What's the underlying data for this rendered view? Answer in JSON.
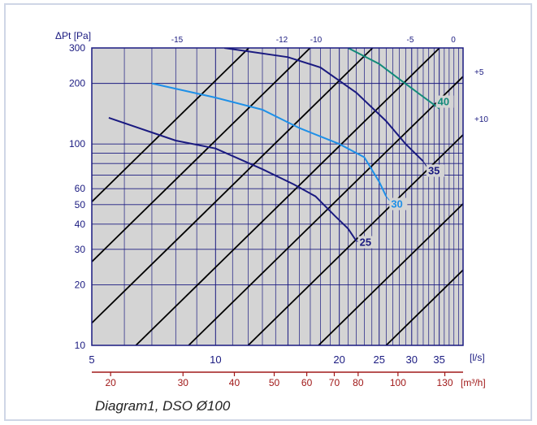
{
  "chart_data": {
    "type": "line",
    "title": "",
    "ylabel": "ΔPt [Pa]",
    "xlabel_ls": "[l/s]",
    "xlabel_m3h": "[m³/h]",
    "x_scale": "log",
    "y_scale": "log",
    "xlim": [
      5,
      40
    ],
    "ylim": [
      10,
      300
    ],
    "grid": true,
    "y_ticks": [
      "300",
      "200",
      "100",
      "60",
      "50",
      "40",
      "30",
      "20",
      "10"
    ],
    "x_ticks_ls": [
      "5",
      "10",
      "20",
      "25",
      "30",
      "35"
    ],
    "x_ticks_m3h": [
      "20",
      "30",
      "40",
      "50",
      "60",
      "70",
      "80",
      "100",
      "130"
    ],
    "damper_lines_top_labels": [
      "-15",
      "-12",
      "-10",
      "-5",
      "0"
    ],
    "damper_lines_right_labels": [
      "+5",
      "+10"
    ],
    "series": [
      {
        "name": "25",
        "color": "#1a1a80",
        "points": [
          [
            5.5,
            135
          ],
          [
            8,
            104
          ],
          [
            10,
            95
          ],
          [
            13,
            75
          ],
          [
            15.5,
            63
          ],
          [
            17.5,
            55
          ],
          [
            19.5,
            44
          ],
          [
            21,
            38
          ],
          [
            22,
            33
          ]
        ]
      },
      {
        "name": "30",
        "color": "#1e90e8",
        "points": [
          [
            7,
            200
          ],
          [
            10,
            170
          ],
          [
            13,
            148
          ],
          [
            16,
            120
          ],
          [
            20,
            100
          ],
          [
            23,
            86
          ],
          [
            25,
            65
          ],
          [
            26,
            55
          ]
        ]
      },
      {
        "name": "35",
        "color": "#1a1a80",
        "points": [
          [
            10.5,
            300
          ],
          [
            15,
            270
          ],
          [
            18,
            240
          ],
          [
            22,
            180
          ],
          [
            26,
            130
          ],
          [
            29,
            100
          ],
          [
            32,
            82
          ]
        ]
      },
      {
        "name": "40",
        "color": "#128a7a",
        "points": [
          [
            21,
            300
          ],
          [
            25,
            250
          ],
          [
            28,
            210
          ],
          [
            31,
            180
          ],
          [
            35,
            150
          ]
        ]
      }
    ]
  },
  "caption": "Diagram1, DSO Ø100"
}
